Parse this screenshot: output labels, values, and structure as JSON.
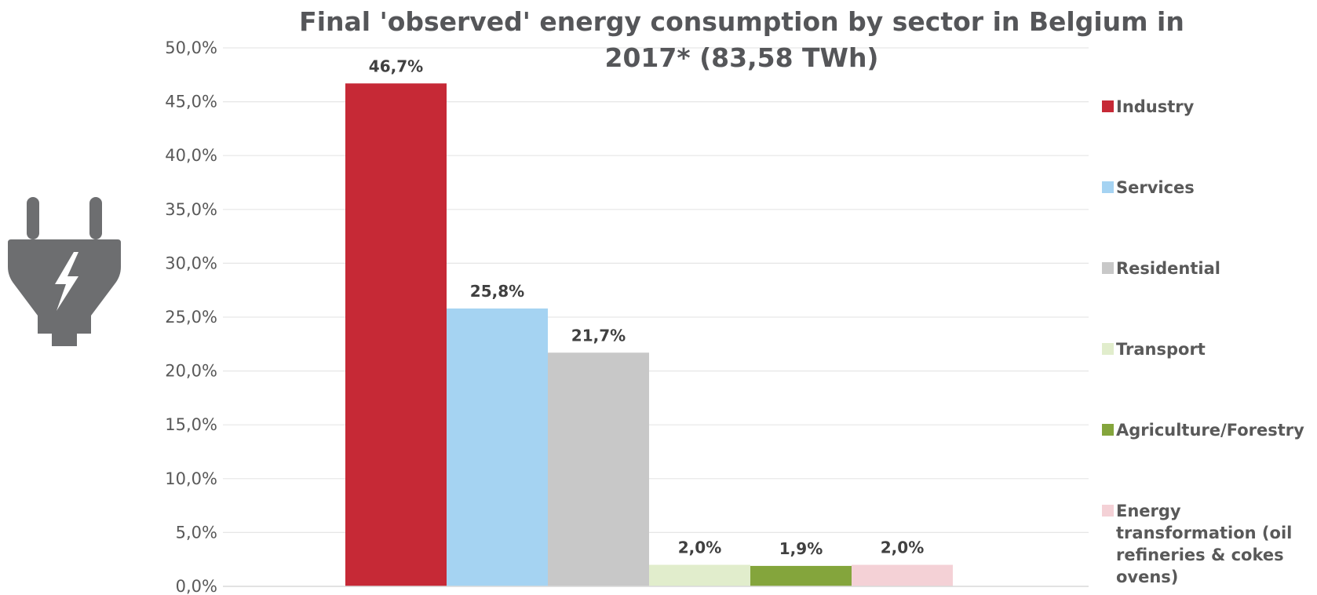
{
  "chart_data": {
    "type": "bar",
    "title_lines": [
      "Final 'observed' energy consumption by sector in Belgium in",
      "2017* (83,58 TWh)"
    ],
    "xlabel": "",
    "ylabel": "",
    "ylim": [
      0,
      50
    ],
    "y_ticks": [
      "0,0%",
      "5,0%",
      "10,0%",
      "15,0%",
      "20,0%",
      "25,0%",
      "30,0%",
      "35,0%",
      "40,0%",
      "45,0%",
      "50,0%"
    ],
    "y_tick_values": [
      0,
      5,
      10,
      15,
      20,
      25,
      30,
      35,
      40,
      45,
      50
    ],
    "grid": true,
    "legend_position": "right",
    "series": [
      {
        "name": "Industry",
        "value": 46.7,
        "label": "46,7%",
        "color": "#c62936",
        "legend_lines": [
          " Industry"
        ]
      },
      {
        "name": "Services",
        "value": 25.8,
        "label": "25,8%",
        "color": "#a5d3f2",
        "legend_lines": [
          "Services"
        ]
      },
      {
        "name": "Residential",
        "value": 21.7,
        "label": "21,7%",
        "color": "#c8c8c8",
        "legend_lines": [
          "Residential"
        ]
      },
      {
        "name": "Transport",
        "value": 2.0,
        "label": "2,0%",
        "color": "#e1edcc",
        "legend_lines": [
          "Transport"
        ]
      },
      {
        "name": "Agriculture/Forestry",
        "value": 1.9,
        "label": "1,9%",
        "color": "#84a53c",
        "legend_lines": [
          "Agriculture/Forestry"
        ]
      },
      {
        "name": "Energy transformation (oil refineries & cokes ovens)",
        "value": 2.0,
        "label": "2,0%",
        "color": "#f4d1d6",
        "legend_lines": [
          "Energy",
          "transformation (oil",
          "refineries & cokes",
          "ovens)"
        ]
      }
    ]
  },
  "icon": {
    "name": "plug-icon",
    "color": "#6d6e70"
  }
}
